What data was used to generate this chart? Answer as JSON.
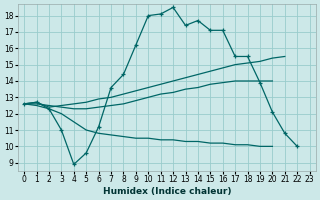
{
  "xlabel": "Humidex (Indice chaleur)",
  "bg_color": "#cce8e8",
  "grid_color": "#99cccc",
  "line_color": "#006666",
  "xlim": [
    -0.5,
    23.5
  ],
  "ylim": [
    8.5,
    18.7
  ],
  "xticks": [
    0,
    1,
    2,
    3,
    4,
    5,
    6,
    7,
    8,
    9,
    10,
    11,
    12,
    13,
    14,
    15,
    16,
    17,
    18,
    19,
    20,
    21,
    22,
    23
  ],
  "yticks": [
    9,
    10,
    11,
    12,
    13,
    14,
    15,
    16,
    17,
    18
  ],
  "line1_x": [
    0,
    1,
    2,
    3,
    4,
    5,
    6,
    7,
    8,
    9,
    10,
    11,
    12,
    13,
    14,
    15,
    16,
    17,
    18,
    19,
    20,
    21,
    22,
    23
  ],
  "line1_y": [
    12.6,
    12.7,
    12.3,
    11.0,
    8.9,
    9.6,
    11.2,
    13.6,
    14.4,
    16.2,
    18.0,
    18.1,
    18.5,
    17.4,
    17.7,
    17.1,
    17.1,
    15.5,
    15.5,
    13.9,
    12.1,
    10.8,
    10.0,
    null
  ],
  "line2_x": [
    0,
    1,
    2,
    3,
    4,
    5,
    6,
    7,
    8,
    9,
    10,
    11,
    12,
    13,
    14,
    15,
    16,
    17,
    18,
    19,
    20,
    21,
    22,
    23
  ],
  "line2_y": [
    12.6,
    12.7,
    12.4,
    12.5,
    12.6,
    12.7,
    12.9,
    13.0,
    13.2,
    13.4,
    13.6,
    13.8,
    14.0,
    14.2,
    14.4,
    14.6,
    14.8,
    15.0,
    15.1,
    15.2,
    15.4,
    15.5,
    null,
    null
  ],
  "line3_x": [
    0,
    1,
    2,
    3,
    4,
    5,
    6,
    7,
    8,
    9,
    10,
    11,
    12,
    13,
    14,
    15,
    16,
    17,
    18,
    19,
    20,
    21,
    22,
    23
  ],
  "line3_y": [
    12.6,
    12.6,
    12.5,
    12.4,
    12.3,
    12.3,
    12.4,
    12.5,
    12.6,
    12.8,
    13.0,
    13.2,
    13.3,
    13.5,
    13.6,
    13.8,
    13.9,
    14.0,
    14.0,
    14.0,
    14.0,
    null,
    null,
    null
  ],
  "line4_x": [
    0,
    1,
    2,
    3,
    4,
    5,
    6,
    7,
    8,
    9,
    10,
    11,
    12,
    13,
    14,
    15,
    16,
    17,
    18,
    19,
    20,
    21,
    22,
    23
  ],
  "line4_y": [
    12.6,
    12.5,
    12.3,
    12.0,
    11.5,
    11.0,
    10.8,
    10.7,
    10.6,
    10.5,
    10.5,
    10.4,
    10.4,
    10.3,
    10.3,
    10.2,
    10.2,
    10.1,
    10.1,
    10.0,
    10.0,
    null,
    null,
    null
  ]
}
